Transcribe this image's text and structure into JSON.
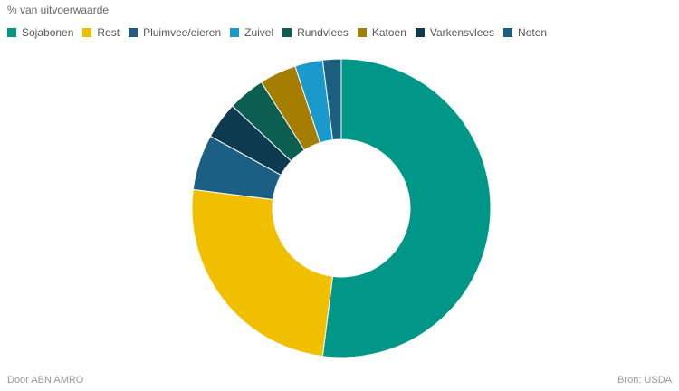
{
  "chart_data": {
    "type": "pie",
    "subtitle": "% van uitvoerwaarde",
    "categories": [
      "Sojabonen",
      "Rest",
      "Pluimvee/eieren",
      "Zuivel",
      "Rundvlees",
      "Katoen",
      "Varkensvlees",
      "Noten"
    ],
    "values": [
      52,
      25,
      6,
      3,
      4,
      4,
      4,
      2
    ],
    "colors": [
      "#009688",
      "#f0c000",
      "#1e5c80",
      "#1999cc",
      "#0b5e50",
      "#a57d00",
      "#0d3a4f",
      "#1a6080"
    ],
    "slice_order": [
      "Sojabonen",
      "Rest",
      "Pluimvee/eieren",
      "Varkensvlees",
      "Rundvlees",
      "Katoen",
      "Zuivel",
      "Noten"
    ],
    "slice_colors": [
      "#009688",
      "#f0c000",
      "#1b5f85",
      "#0d3a4f",
      "#0b5e50",
      "#a57d00",
      "#1999cc",
      "#1a6080"
    ],
    "legend_position": "top-left",
    "donut": true
  },
  "footer": {
    "credit": "Door ABN AMRO",
    "source": "Bron:  USDA"
  }
}
